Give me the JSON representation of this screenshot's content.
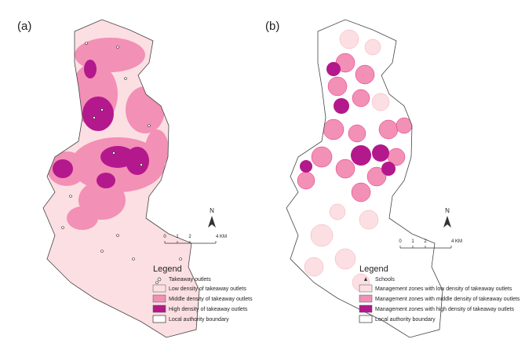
{
  "panels": [
    {
      "label": "(a)",
      "north": "N",
      "scale": [
        "0",
        "1",
        "2",
        "4 KM"
      ],
      "legend": {
        "title": "Legend",
        "items": [
          "Takeaway outlets",
          "Low density of takeaway outlets",
          "Middle density of takeaway outlets",
          "High density of takeaway outlets",
          "Local authority boundary"
        ]
      }
    },
    {
      "label": "(b)",
      "north": "N",
      "scale": [
        "0",
        "1",
        "2",
        "4 KM"
      ],
      "legend": {
        "title": "Legend",
        "items": [
          "Schools",
          "Management zones with low density of takeaway outlets",
          "Management zones with middle density of takeaway outlets",
          "Management zones with high density of takeaway outlets",
          "Local authority boundary"
        ]
      }
    }
  ]
}
